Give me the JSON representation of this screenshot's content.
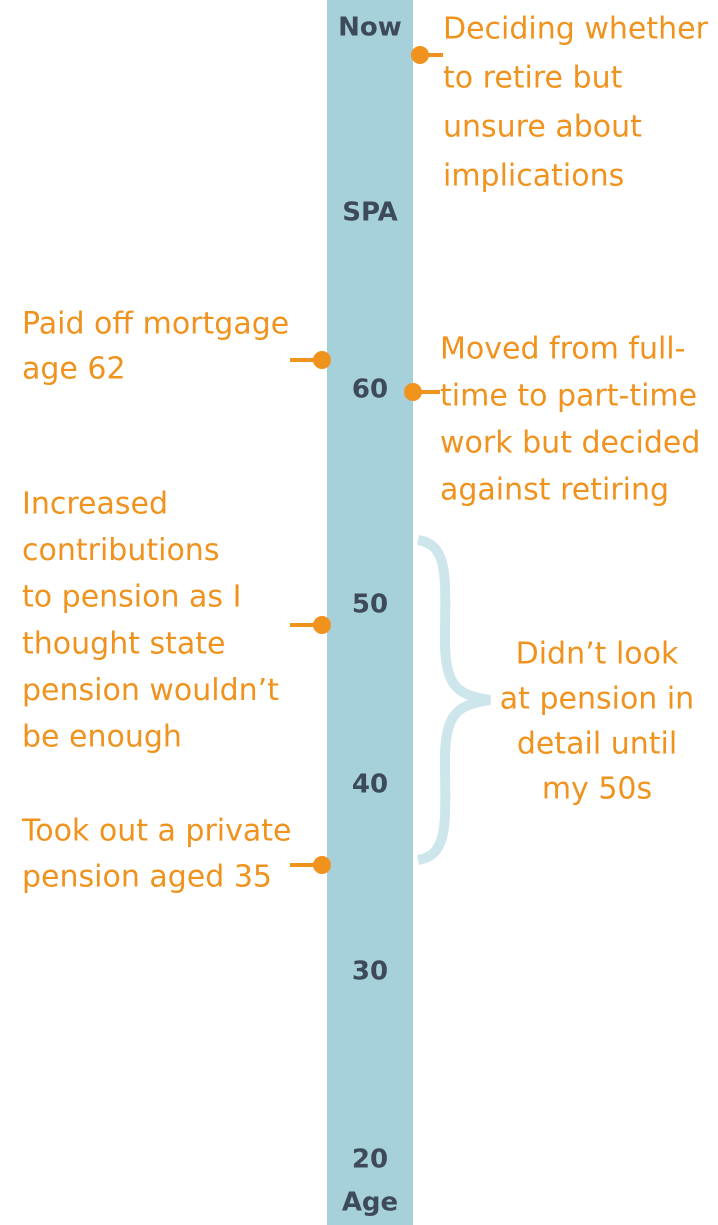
{
  "axis": {
    "labels": [
      "Now",
      "SPA",
      "60",
      "50",
      "40",
      "30",
      "20"
    ],
    "title": "Age"
  },
  "events": [
    {
      "lines": [
        "Deciding whether",
        "to retire but",
        "unsure about",
        "implications"
      ]
    },
    {
      "lines": [
        "Paid off mortgage",
        "age 62"
      ]
    },
    {
      "lines": [
        "Moved from full-",
        "time to part-time",
        "work but decided",
        "against retiring"
      ]
    },
    {
      "lines": [
        "Increased",
        "contributions",
        "to pension as I",
        "thought state",
        "pension wouldn’t",
        "be enough"
      ]
    },
    {
      "lines": [
        "Took out a private",
        "pension aged 35"
      ]
    }
  ],
  "note": {
    "lines": [
      "Didn’t look",
      "at pension in",
      "detail until",
      "my 50s"
    ]
  }
}
